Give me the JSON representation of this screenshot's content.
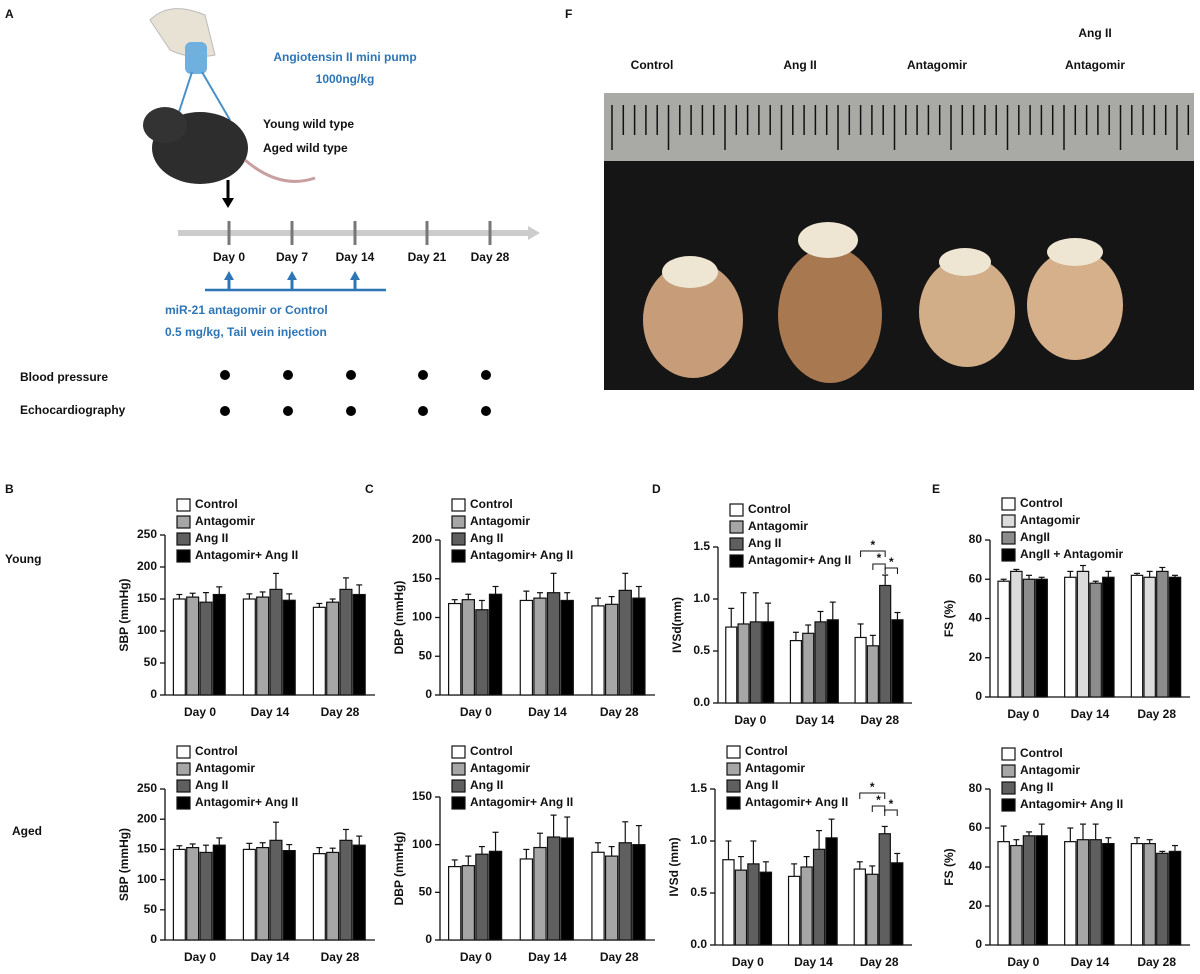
{
  "panel_labels": [
    "A",
    "B",
    "C",
    "D",
    "E",
    "F"
  ],
  "row_labels": [
    "Young",
    "Aged"
  ],
  "panel_a": {
    "pump": [
      "Angiotensin II mini pump",
      "1000ng/kg"
    ],
    "mice": [
      "Young wild type",
      "Aged wild type"
    ],
    "days": [
      "Day 0",
      "Day 7",
      "Day 14",
      "Day 21",
      "Day 28"
    ],
    "injection": [
      "miR-21 antagomir or Control",
      "0.5 mg/kg, Tail vein injection"
    ],
    "measures": [
      "Blood pressure",
      "Echocardiography"
    ]
  },
  "panel_f": {
    "photo_labels": [
      "Control",
      "Ang II",
      "Antagomir"
    ],
    "combined_label": [
      "Ang II",
      "Antagomir"
    ]
  },
  "chart_data": [
    {
      "type": "bar",
      "y_label": "SBP (mmHg)",
      "categories": [
        "Day 0",
        "Day 14",
        "Day 28"
      ],
      "ylim": [
        0,
        250
      ],
      "yticks": [
        0,
        50,
        100,
        150,
        200,
        250
      ],
      "series": [
        {
          "name": "Control",
          "color": "#ffffff",
          "values": [
            150,
            150,
            137
          ],
          "errors": [
            7,
            8,
            6
          ]
        },
        {
          "name": "Antagomir",
          "color": "#a6a6a6",
          "values": [
            153,
            153,
            145
          ],
          "errors": [
            6,
            8,
            5
          ]
        },
        {
          "name": "Ang II",
          "color": "#5f5f5f",
          "values": [
            145,
            165,
            165
          ],
          "errors": [
            15,
            25,
            18
          ]
        },
        {
          "name": "Antagomir+ Ang II",
          "color": "#000000",
          "values": [
            157,
            148,
            157
          ],
          "errors": [
            12,
            10,
            15
          ]
        }
      ]
    },
    {
      "type": "bar",
      "y_label": "DBP (mmHg)",
      "categories": [
        "Day 0",
        "Day 14",
        "Day 28"
      ],
      "ylim": [
        0,
        200
      ],
      "yticks": [
        0,
        50,
        100,
        150,
        200
      ],
      "series": [
        {
          "name": "Control",
          "color": "#ffffff",
          "values": [
            118,
            122,
            115
          ],
          "errors": [
            5,
            12,
            10
          ]
        },
        {
          "name": "Antagomir",
          "color": "#a6a6a6",
          "values": [
            123,
            125,
            117
          ],
          "errors": [
            7,
            7,
            10
          ]
        },
        {
          "name": "Ang II",
          "color": "#5f5f5f",
          "values": [
            110,
            132,
            135
          ],
          "errors": [
            12,
            25,
            22
          ]
        },
        {
          "name": "Antagomir+ Ang II",
          "color": "#000000",
          "values": [
            130,
            122,
            125
          ],
          "errors": [
            10,
            10,
            15
          ]
        }
      ]
    },
    {
      "type": "bar",
      "y_label": "IVSd(mm)",
      "categories": [
        "Day 0",
        "Day 14",
        "Day 28"
      ],
      "ylim": [
        0,
        1.5
      ],
      "yticks": [
        {
          "value": 0,
          "label": "0.0"
        },
        0.5,
        {
          "value": 1,
          "label": "1.0"
        },
        1.5
      ],
      "annotations": [
        "*",
        "*",
        "*"
      ],
      "series": [
        {
          "name": "Control",
          "color": "#ffffff",
          "values": [
            0.73,
            0.6,
            0.63
          ],
          "errors": [
            0.18,
            0.08,
            0.13
          ]
        },
        {
          "name": "Antagomir",
          "color": "#a6a6a6",
          "values": [
            0.76,
            0.67,
            0.55
          ],
          "errors": [
            0.3,
            0.08,
            0.1
          ]
        },
        {
          "name": "Ang II",
          "color": "#5f5f5f",
          "values": [
            0.78,
            0.78,
            1.13
          ],
          "errors": [
            0.28,
            0.1,
            0.1
          ]
        },
        {
          "name": "Antagomir+ Ang II",
          "color": "#000000",
          "values": [
            0.78,
            0.8,
            0.8
          ],
          "errors": [
            0.18,
            0.17,
            0.07
          ]
        }
      ]
    },
    {
      "type": "bar",
      "y_label": "FS (%)",
      "categories": [
        "Day 0",
        "Day 14",
        "Day 28"
      ],
      "ylim": [
        0,
        80
      ],
      "yticks": [
        0,
        20,
        40,
        60,
        80
      ],
      "series": [
        {
          "name": "Control",
          "color": "#ffffff",
          "values": [
            59,
            61,
            62
          ],
          "errors": [
            1,
            3,
            1
          ]
        },
        {
          "name": "Antagomir",
          "color": "#dcdcdc",
          "values": [
            64,
            64,
            61
          ],
          "errors": [
            1,
            3,
            3
          ]
        },
        {
          "name": "AngII",
          "color": "#8c8c8c",
          "values": [
            60,
            58,
            64
          ],
          "errors": [
            2,
            1,
            2
          ]
        },
        {
          "name": "AngII + Antagomir",
          "color": "#000000",
          "values": [
            60,
            61,
            61
          ],
          "errors": [
            1,
            3,
            1
          ]
        }
      ]
    },
    {
      "type": "bar",
      "y_label": "SBP (mmHg)",
      "categories": [
        "Day 0",
        "Day 14",
        "Day 28"
      ],
      "ylim": [
        0,
        250
      ],
      "yticks": [
        0,
        50,
        100,
        150,
        200,
        250
      ],
      "series": [
        {
          "name": "Control",
          "color": "#ffffff",
          "values": [
            150,
            150,
            143
          ],
          "errors": [
            6,
            10,
            10
          ]
        },
        {
          "name": "Antagomir",
          "color": "#a6a6a6",
          "values": [
            153,
            153,
            145
          ],
          "errors": [
            6,
            8,
            7
          ]
        },
        {
          "name": "Ang II",
          "color": "#5f5f5f",
          "values": [
            145,
            165,
            165
          ],
          "errors": [
            12,
            30,
            18
          ]
        },
        {
          "name": "Antagomir+ Ang II",
          "color": "#000000",
          "values": [
            157,
            148,
            157
          ],
          "errors": [
            12,
            10,
            15
          ]
        }
      ]
    },
    {
      "type": "bar",
      "y_label": "DBP (mmHg)",
      "categories": [
        "Day 0",
        "Day 14",
        "Day 28"
      ],
      "ylim": [
        0,
        150
      ],
      "yticks": [
        0,
        50,
        100,
        150
      ],
      "series": [
        {
          "name": "Control",
          "color": "#ffffff",
          "values": [
            77,
            85,
            92
          ],
          "errors": [
            7,
            10,
            10
          ]
        },
        {
          "name": "Antagomir",
          "color": "#a6a6a6",
          "values": [
            78,
            97,
            88
          ],
          "errors": [
            10,
            15,
            10
          ]
        },
        {
          "name": "Ang II",
          "color": "#5f5f5f",
          "values": [
            90,
            108,
            102
          ],
          "errors": [
            8,
            23,
            22
          ]
        },
        {
          "name": "Antagomir+ Ang II",
          "color": "#000000",
          "values": [
            93,
            107,
            100
          ],
          "errors": [
            20,
            22,
            20
          ]
        }
      ]
    },
    {
      "type": "bar",
      "y_label": "IVSd (mm)",
      "categories": [
        "Day 0",
        "Day 14",
        "Day 28"
      ],
      "ylim": [
        0,
        1.5
      ],
      "yticks": [
        {
          "value": 0,
          "label": "0.0"
        },
        0.5,
        {
          "value": 1,
          "label": "1.0"
        },
        1.5
      ],
      "annotations": [
        "*",
        "*",
        "*"
      ],
      "series": [
        {
          "name": "Control",
          "color": "#ffffff",
          "values": [
            0.82,
            0.66,
            0.73
          ],
          "errors": [
            0.18,
            0.12,
            0.07
          ]
        },
        {
          "name": "Antagomir",
          "color": "#a6a6a6",
          "values": [
            0.72,
            0.75,
            0.68
          ],
          "errors": [
            0.13,
            0.1,
            0.08
          ]
        },
        {
          "name": "Ang II",
          "color": "#5f5f5f",
          "values": [
            0.78,
            0.92,
            1.07
          ],
          "errors": [
            0.22,
            0.18,
            0.07
          ]
        },
        {
          "name": "Antagomir+ Ang II",
          "color": "#000000",
          "values": [
            0.7,
            1.03,
            0.79
          ],
          "errors": [
            0.1,
            0.18,
            0.09
          ]
        }
      ]
    },
    {
      "type": "bar",
      "y_label": "FS (%)",
      "categories": [
        "Day 0",
        "Day 14",
        "Day 28"
      ],
      "ylim": [
        0,
        80
      ],
      "yticks": [
        0,
        20,
        40,
        60,
        80
      ],
      "series": [
        {
          "name": "Control",
          "color": "#ffffff",
          "values": [
            53,
            53,
            52
          ],
          "errors": [
            8,
            7,
            3
          ]
        },
        {
          "name": "Antagomir",
          "color": "#a6a6a6",
          "values": [
            51,
            54,
            52
          ],
          "errors": [
            3,
            8,
            2
          ]
        },
        {
          "name": "Ang II",
          "color": "#5f5f5f",
          "values": [
            56,
            54,
            47
          ],
          "errors": [
            2,
            8,
            1
          ]
        },
        {
          "name": "Antagomir+ Ang II",
          "color": "#000000",
          "values": [
            56,
            52,
            48
          ],
          "errors": [
            6,
            3,
            3
          ]
        }
      ]
    }
  ]
}
